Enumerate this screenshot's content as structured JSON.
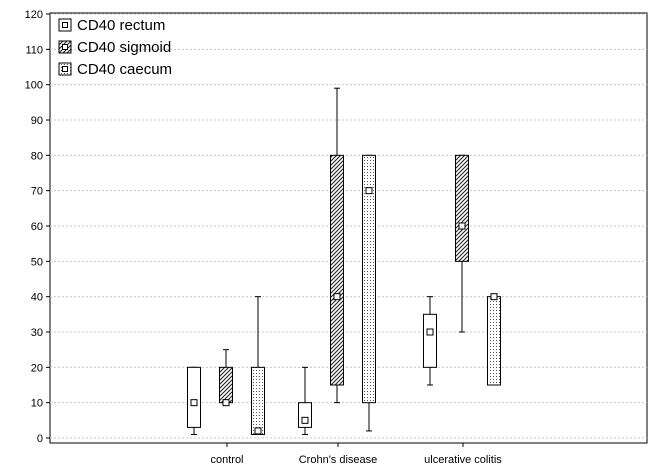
{
  "chart_data": {
    "type": "box",
    "categories": [
      "control",
      "Crohn's disease",
      "ulcerative colitis"
    ],
    "ylim": [
      0,
      120
    ],
    "yticks": [
      0,
      10,
      20,
      30,
      40,
      50,
      60,
      70,
      80,
      90,
      100,
      110,
      120
    ],
    "grid": true,
    "legend_position": "top-left",
    "series": [
      {
        "name": "CD40 rectum",
        "pattern": "none",
        "values": [
          {
            "min": 1,
            "q1": 3,
            "median": 10,
            "q3": 20,
            "max": 20
          },
          {
            "min": 1,
            "q1": 3,
            "median": 5,
            "q3": 10,
            "max": 20
          },
          {
            "min": 15,
            "q1": 20,
            "median": 30,
            "q3": 35,
            "max": 40
          }
        ]
      },
      {
        "name": "CD40 sigmoid",
        "pattern": "hatch",
        "values": [
          {
            "min": 10,
            "q1": 10,
            "median": 10,
            "q3": 20,
            "max": 25
          },
          {
            "min": 10,
            "q1": 15,
            "median": 40,
            "q3": 80,
            "max": 99
          },
          {
            "min": 30,
            "q1": 50,
            "median": 60,
            "q3": 80,
            "max": 80
          }
        ]
      },
      {
        "name": "CD40 caecum",
        "pattern": "dots",
        "values": [
          {
            "min": 1,
            "q1": 1,
            "median": 2,
            "q3": 20,
            "max": 40
          },
          {
            "min": 2,
            "q1": 10,
            "median": 70,
            "q3": 80,
            "max": 80
          },
          {
            "min": 15,
            "q1": 15,
            "median": 40,
            "q3": 40,
            "max": 40
          }
        ]
      }
    ]
  }
}
